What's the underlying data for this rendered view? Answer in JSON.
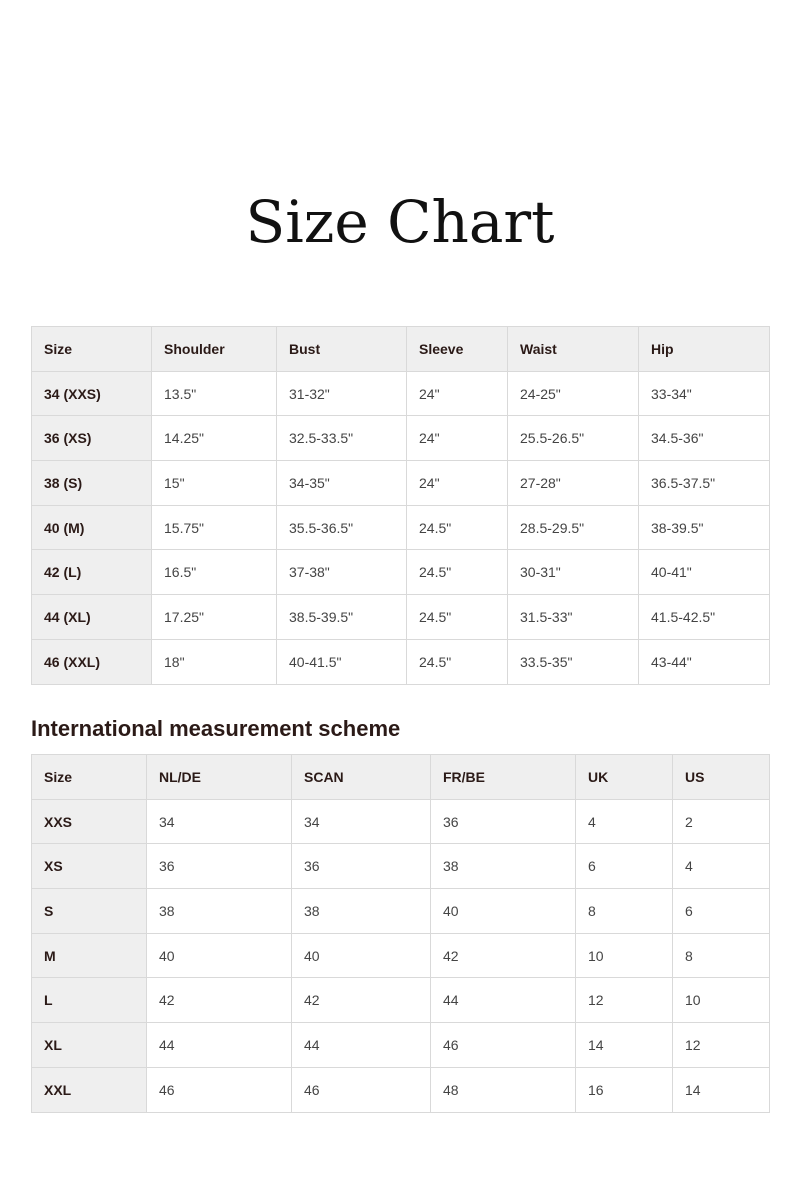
{
  "title": "Size Chart",
  "size_table": {
    "headers": [
      "Size",
      "Shoulder",
      "Bust",
      "Sleeve",
      "Waist",
      "Hip"
    ],
    "rows": [
      [
        "34 (XXS)",
        "13.5\"",
        "31-32\"",
        "24\"",
        "24-25\"",
        "33-34\""
      ],
      [
        "36 (XS)",
        "14.25\"",
        "32.5-33.5\"",
        "24\"",
        "25.5-26.5\"",
        "34.5-36\""
      ],
      [
        "38 (S)",
        "15\"",
        "34-35\"",
        "24\"",
        "27-28\"",
        "36.5-37.5\""
      ],
      [
        "40 (M)",
        "15.75\"",
        "35.5-36.5\"",
        "24.5\"",
        "28.5-29.5\"",
        "38-39.5\""
      ],
      [
        "42 (L)",
        "16.5\"",
        "37-38\"",
        "24.5\"",
        "30-31\"",
        "40-41\""
      ],
      [
        "44 (XL)",
        "17.25\"",
        "38.5-39.5\"",
        "24.5\"",
        "31.5-33\"",
        "41.5-42.5\""
      ],
      [
        "46 (XXL)",
        "18\"",
        "40-41.5\"",
        "24.5\"",
        "33.5-35\"",
        "43-44\""
      ]
    ]
  },
  "intl_heading": "International measurement scheme",
  "intl_table": {
    "headers": [
      "Size",
      "NL/DE",
      "SCAN",
      "FR/BE",
      "UK",
      "US"
    ],
    "rows": [
      [
        "XXS",
        "34",
        "34",
        "36",
        "4",
        "2"
      ],
      [
        "XS",
        "36",
        "36",
        "38",
        "6",
        "4"
      ],
      [
        "S",
        "38",
        "38",
        "40",
        "8",
        "6"
      ],
      [
        "M",
        "40",
        "40",
        "42",
        "10",
        "8"
      ],
      [
        "L",
        "42",
        "42",
        "44",
        "12",
        "10"
      ],
      [
        "XL",
        "44",
        "44",
        "46",
        "14",
        "12"
      ],
      [
        "XXL",
        "46",
        "46",
        "48",
        "16",
        "14"
      ]
    ]
  }
}
